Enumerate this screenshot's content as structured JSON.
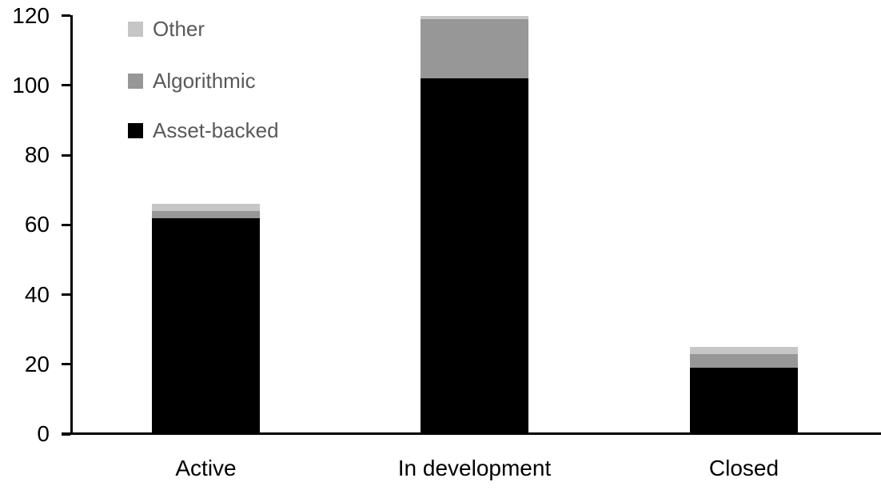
{
  "chart_data": {
    "type": "bar",
    "subtype": "stacked-vertical",
    "title": "",
    "xlabel": "",
    "ylabel": "",
    "categories": [
      "Active",
      "In development",
      "Closed"
    ],
    "series": [
      {
        "name": "Asset-backed",
        "color": "#000000",
        "values": [
          62,
          102,
          19
        ]
      },
      {
        "name": "Algorithmic",
        "color": "#979797",
        "values": [
          2,
          17,
          4
        ]
      },
      {
        "name": "Other",
        "color": "#c6c6c6",
        "values": [
          2,
          1,
          2
        ]
      }
    ],
    "stack_totals": [
      66,
      120,
      25
    ],
    "ylim": [
      0,
      120
    ],
    "yticks": [
      0,
      20,
      40,
      60,
      80,
      100,
      120
    ],
    "grid": false,
    "legend_position": "top-left",
    "legend_order_top_to_bottom": [
      "Other",
      "Algorithmic",
      "Asset-backed"
    ],
    "background_color": "#ffffff",
    "axis_color": "#000000",
    "tick_label_color": "#000000",
    "legend_text_color": "#595959"
  }
}
